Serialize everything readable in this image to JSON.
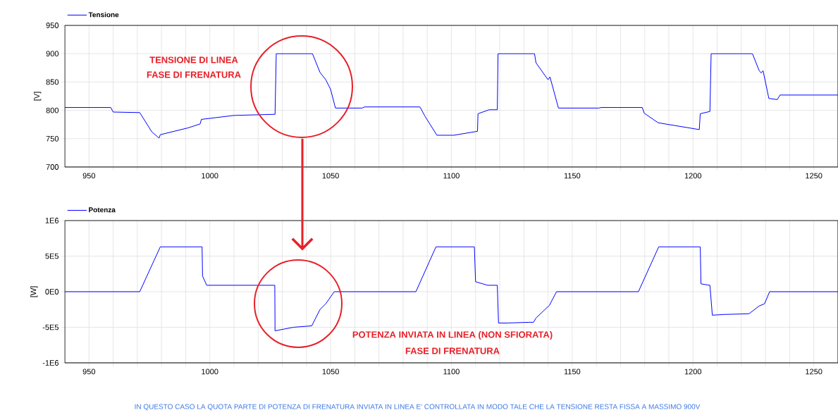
{
  "chart_data": [
    {
      "type": "line",
      "ylabel": "[V]",
      "x": [
        940,
        959,
        960,
        971,
        976,
        979,
        979.5,
        991,
        996,
        996.5,
        1010,
        1027,
        1027.5,
        1042.5,
        1045.6,
        1048,
        1050,
        1052,
        1063,
        1064,
        1087,
        1089,
        1094,
        1101,
        1110.8,
        1111,
        1115.6,
        1119,
        1119.3,
        1134.4,
        1135,
        1140,
        1140.8,
        1144.3,
        1161,
        1162,
        1179,
        1179.8,
        1185.6,
        1202.6,
        1203,
        1207,
        1207.5,
        1224.6,
        1227.4,
        1228.2,
        1229,
        1231.4,
        1234.9,
        1236,
        1260
      ],
      "series": [
        {
          "name": "Tensione",
          "color": "#0000ff",
          "values": [
            805,
            805,
            797,
            796,
            762,
            751,
            757,
            769,
            776,
            784,
            791,
            793,
            900,
            900,
            867,
            854,
            837,
            804,
            804,
            806,
            806,
            790,
            756,
            756,
            763,
            794,
            801,
            801,
            900,
            900,
            884,
            854,
            859,
            804,
            804,
            805,
            805,
            795,
            778,
            766,
            794,
            798,
            900,
            900,
            870,
            866,
            870,
            821,
            819,
            827,
            827
          ]
        }
      ],
      "xlim": [
        940,
        1260
      ],
      "xticks": [
        950,
        {
          "value": 960,
          "label": null
        },
        {
          "value": 970,
          "label": null
        },
        {
          "value": 980,
          "label": null
        },
        {
          "value": 990,
          "label": null
        },
        1000,
        {
          "value": 1010,
          "label": null
        },
        {
          "value": 1020,
          "label": null
        },
        {
          "value": 1030,
          "label": null
        },
        {
          "value": 1040,
          "label": null
        },
        1050,
        {
          "value": 1060,
          "label": null
        },
        {
          "value": 1070,
          "label": null
        },
        {
          "value": 1080,
          "label": null
        },
        {
          "value": 1090,
          "label": null
        },
        1100,
        {
          "value": 1110,
          "label": null
        },
        {
          "value": 1120,
          "label": null
        },
        {
          "value": 1130,
          "label": null
        },
        {
          "value": 1140,
          "label": null
        },
        1150,
        {
          "value": 1160,
          "label": null
        },
        {
          "value": 1170,
          "label": null
        },
        {
          "value": 1180,
          "label": null
        },
        {
          "value": 1190,
          "label": null
        },
        1200,
        {
          "value": 1210,
          "label": null
        },
        {
          "value": 1220,
          "label": null
        },
        {
          "value": 1230,
          "label": null
        },
        {
          "value": 1240,
          "label": null
        },
        1250
      ],
      "ylim": [
        700,
        950
      ],
      "yticks": [
        700,
        750,
        800,
        850,
        900,
        950
      ],
      "grid": true,
      "legend": "top left",
      "annotations": [
        "TENSIONE DI LINEA",
        "FASE DI FRENATURA"
      ]
    },
    {
      "type": "line",
      "ylabel": "[W]",
      "x": [
        940,
        971,
        979.5,
        996.8,
        997,
        998.7,
        1026.9,
        1027,
        1034.6,
        1042.2,
        1045.6,
        1048,
        1051.5,
        1085.3,
        1093.6,
        1109.5,
        1110,
        1115,
        1119,
        1119.5,
        1123.3,
        1132,
        1134,
        1135,
        1140.6,
        1143.5,
        1177.4,
        1185.8,
        1203,
        1203.3,
        1207,
        1208,
        1213,
        1223.2,
        1227.4,
        1229.6,
        1231.7,
        1260
      ],
      "series": [
        {
          "name": "Potenza",
          "color": "#0000ff",
          "values": [
            0,
            0,
            630000,
            630000,
            220000,
            90000,
            90000,
            -550000,
            -500000,
            -480000,
            -250000,
            -170000,
            0,
            0,
            630000,
            630000,
            140000,
            90000,
            90000,
            -440000,
            -440000,
            -430000,
            -430000,
            -370000,
            -190000,
            0,
            0,
            630000,
            630000,
            110000,
            90000,
            -330000,
            -320000,
            -310000,
            -200000,
            -170000,
            0,
            0
          ]
        }
      ],
      "xlim": [
        940,
        1260
      ],
      "xticks": [
        950,
        {
          "value": 960,
          "label": null
        },
        {
          "value": 970,
          "label": null
        },
        {
          "value": 980,
          "label": null
        },
        {
          "value": 990,
          "label": null
        },
        1000,
        {
          "value": 1010,
          "label": null
        },
        {
          "value": 1020,
          "label": null
        },
        {
          "value": 1030,
          "label": null
        },
        {
          "value": 1040,
          "label": null
        },
        1050,
        {
          "value": 1060,
          "label": null
        },
        {
          "value": 1070,
          "label": null
        },
        {
          "value": 1080,
          "label": null
        },
        {
          "value": 1090,
          "label": null
        },
        1100,
        {
          "value": 1110,
          "label": null
        },
        {
          "value": 1120,
          "label": null
        },
        {
          "value": 1130,
          "label": null
        },
        {
          "value": 1140,
          "label": null
        },
        1150,
        {
          "value": 1160,
          "label": null
        },
        {
          "value": 1170,
          "label": null
        },
        {
          "value": 1180,
          "label": null
        },
        {
          "value": 1190,
          "label": null
        },
        1200,
        {
          "value": 1210,
          "label": null
        },
        {
          "value": 1220,
          "label": null
        },
        {
          "value": 1230,
          "label": null
        },
        {
          "value": 1240,
          "label": null
        },
        1250
      ],
      "ylim": [
        -1000000,
        1000000
      ],
      "yticks": [
        {
          "value": -1000000,
          "label": "-1E6"
        },
        {
          "value": -500000,
          "label": "-5E5"
        },
        {
          "value": 0,
          "label": "0E0"
        },
        {
          "value": 500000,
          "label": "5E5"
        },
        {
          "value": 1000000,
          "label": "1E6"
        }
      ],
      "grid": true,
      "legend": "top left",
      "annotations": [
        "POTENZA INVIATA IN LINEA (NON SFIORATA)",
        "FASE DI FRENATURA",
        "IN QUESTO CASO LA QUOTA PARTE DI POTENZA DI FRENATURA INVIATA IN LINEA E' CONTROLLATA IN MODO TALE CHE  LA TENSIONE RESTA FISSA A MASSIMO 900V"
      ]
    }
  ]
}
